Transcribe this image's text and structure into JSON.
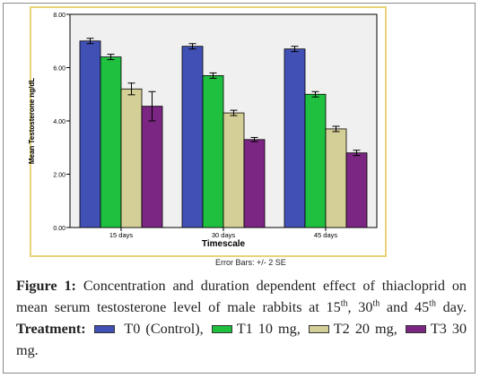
{
  "chart_data": {
    "type": "bar",
    "xlabel": "Timescale",
    "ylabel": "Mean Testosterone ng/dL",
    "ylim": [
      0,
      8
    ],
    "yticks": [
      "0.00",
      "2.00",
      "4.00",
      "6.00",
      "8.00"
    ],
    "categories": [
      "15 days",
      "30 days",
      "45 days"
    ],
    "series": [
      {
        "name": "T0",
        "color": "#4150b5",
        "values": [
          7.0,
          6.8,
          6.7
        ],
        "err": [
          0.1,
          0.1,
          0.1
        ]
      },
      {
        "name": "T1 10 mg",
        "color": "#1fbf3f",
        "values": [
          6.4,
          5.7,
          5.0
        ],
        "err": [
          0.1,
          0.1,
          0.1
        ]
      },
      {
        "name": "T2 20 mg",
        "color": "#d4cf96",
        "values": [
          5.2,
          4.3,
          3.7
        ],
        "err": [
          0.22,
          0.1,
          0.1
        ]
      },
      {
        "name": "T3 30 mg",
        "color": "#7b2682",
        "values": [
          4.55,
          3.3,
          2.8
        ],
        "err": [
          0.55,
          0.08,
          0.1
        ]
      }
    ],
    "footnote": "Error Bars: +/- 2 SE",
    "grid": false
  },
  "caption": {
    "label": "Figure 1:",
    "text_1": "Concentration and duration dependent effect of thiacloprid on mean serum testosterone level of male rabbits at 15",
    "sup_1": "th",
    "text_2": ", 30",
    "sup_2": "th",
    "text_3": " and 45",
    "sup_3": "th",
    "text_4": " day.",
    "treatment_label": "Treatment:",
    "legend_1": "T0 (Control),",
    "legend_2": "T1 10 mg,",
    "legend_3": "T2 20 mg,",
    "legend_4": "T3 30 mg."
  }
}
